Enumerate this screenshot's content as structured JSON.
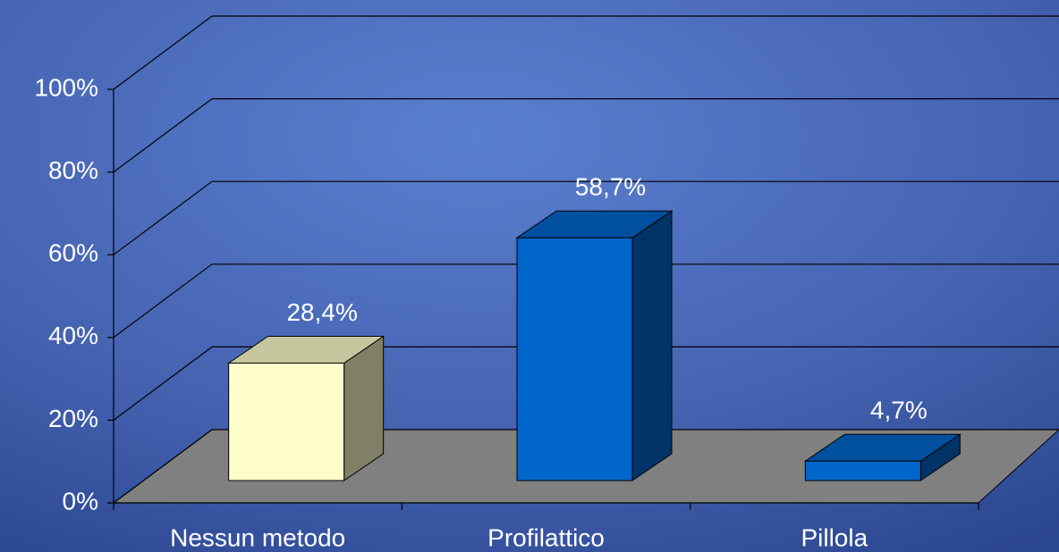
{
  "chart_data": {
    "type": "bar3d",
    "categories": [
      "Nessun metodo",
      "Profilattico",
      "Pillola"
    ],
    "values": [
      28.4,
      58.7,
      4.7
    ],
    "value_labels": [
      "28,4%",
      "58,7%",
      "4,7%"
    ],
    "colors": [
      "#ffffcc",
      "#0066cc",
      "#0066cc"
    ],
    "ylim": [
      0,
      100
    ],
    "yticks": [
      {
        "value": 0,
        "label": "0%"
      },
      {
        "value": 20,
        "label": "20%"
      },
      {
        "value": 40,
        "label": "40%"
      },
      {
        "value": 60,
        "label": "60%"
      },
      {
        "value": 80,
        "label": "80%"
      },
      {
        "value": 100,
        "label": "100%"
      }
    ],
    "grid": true
  }
}
